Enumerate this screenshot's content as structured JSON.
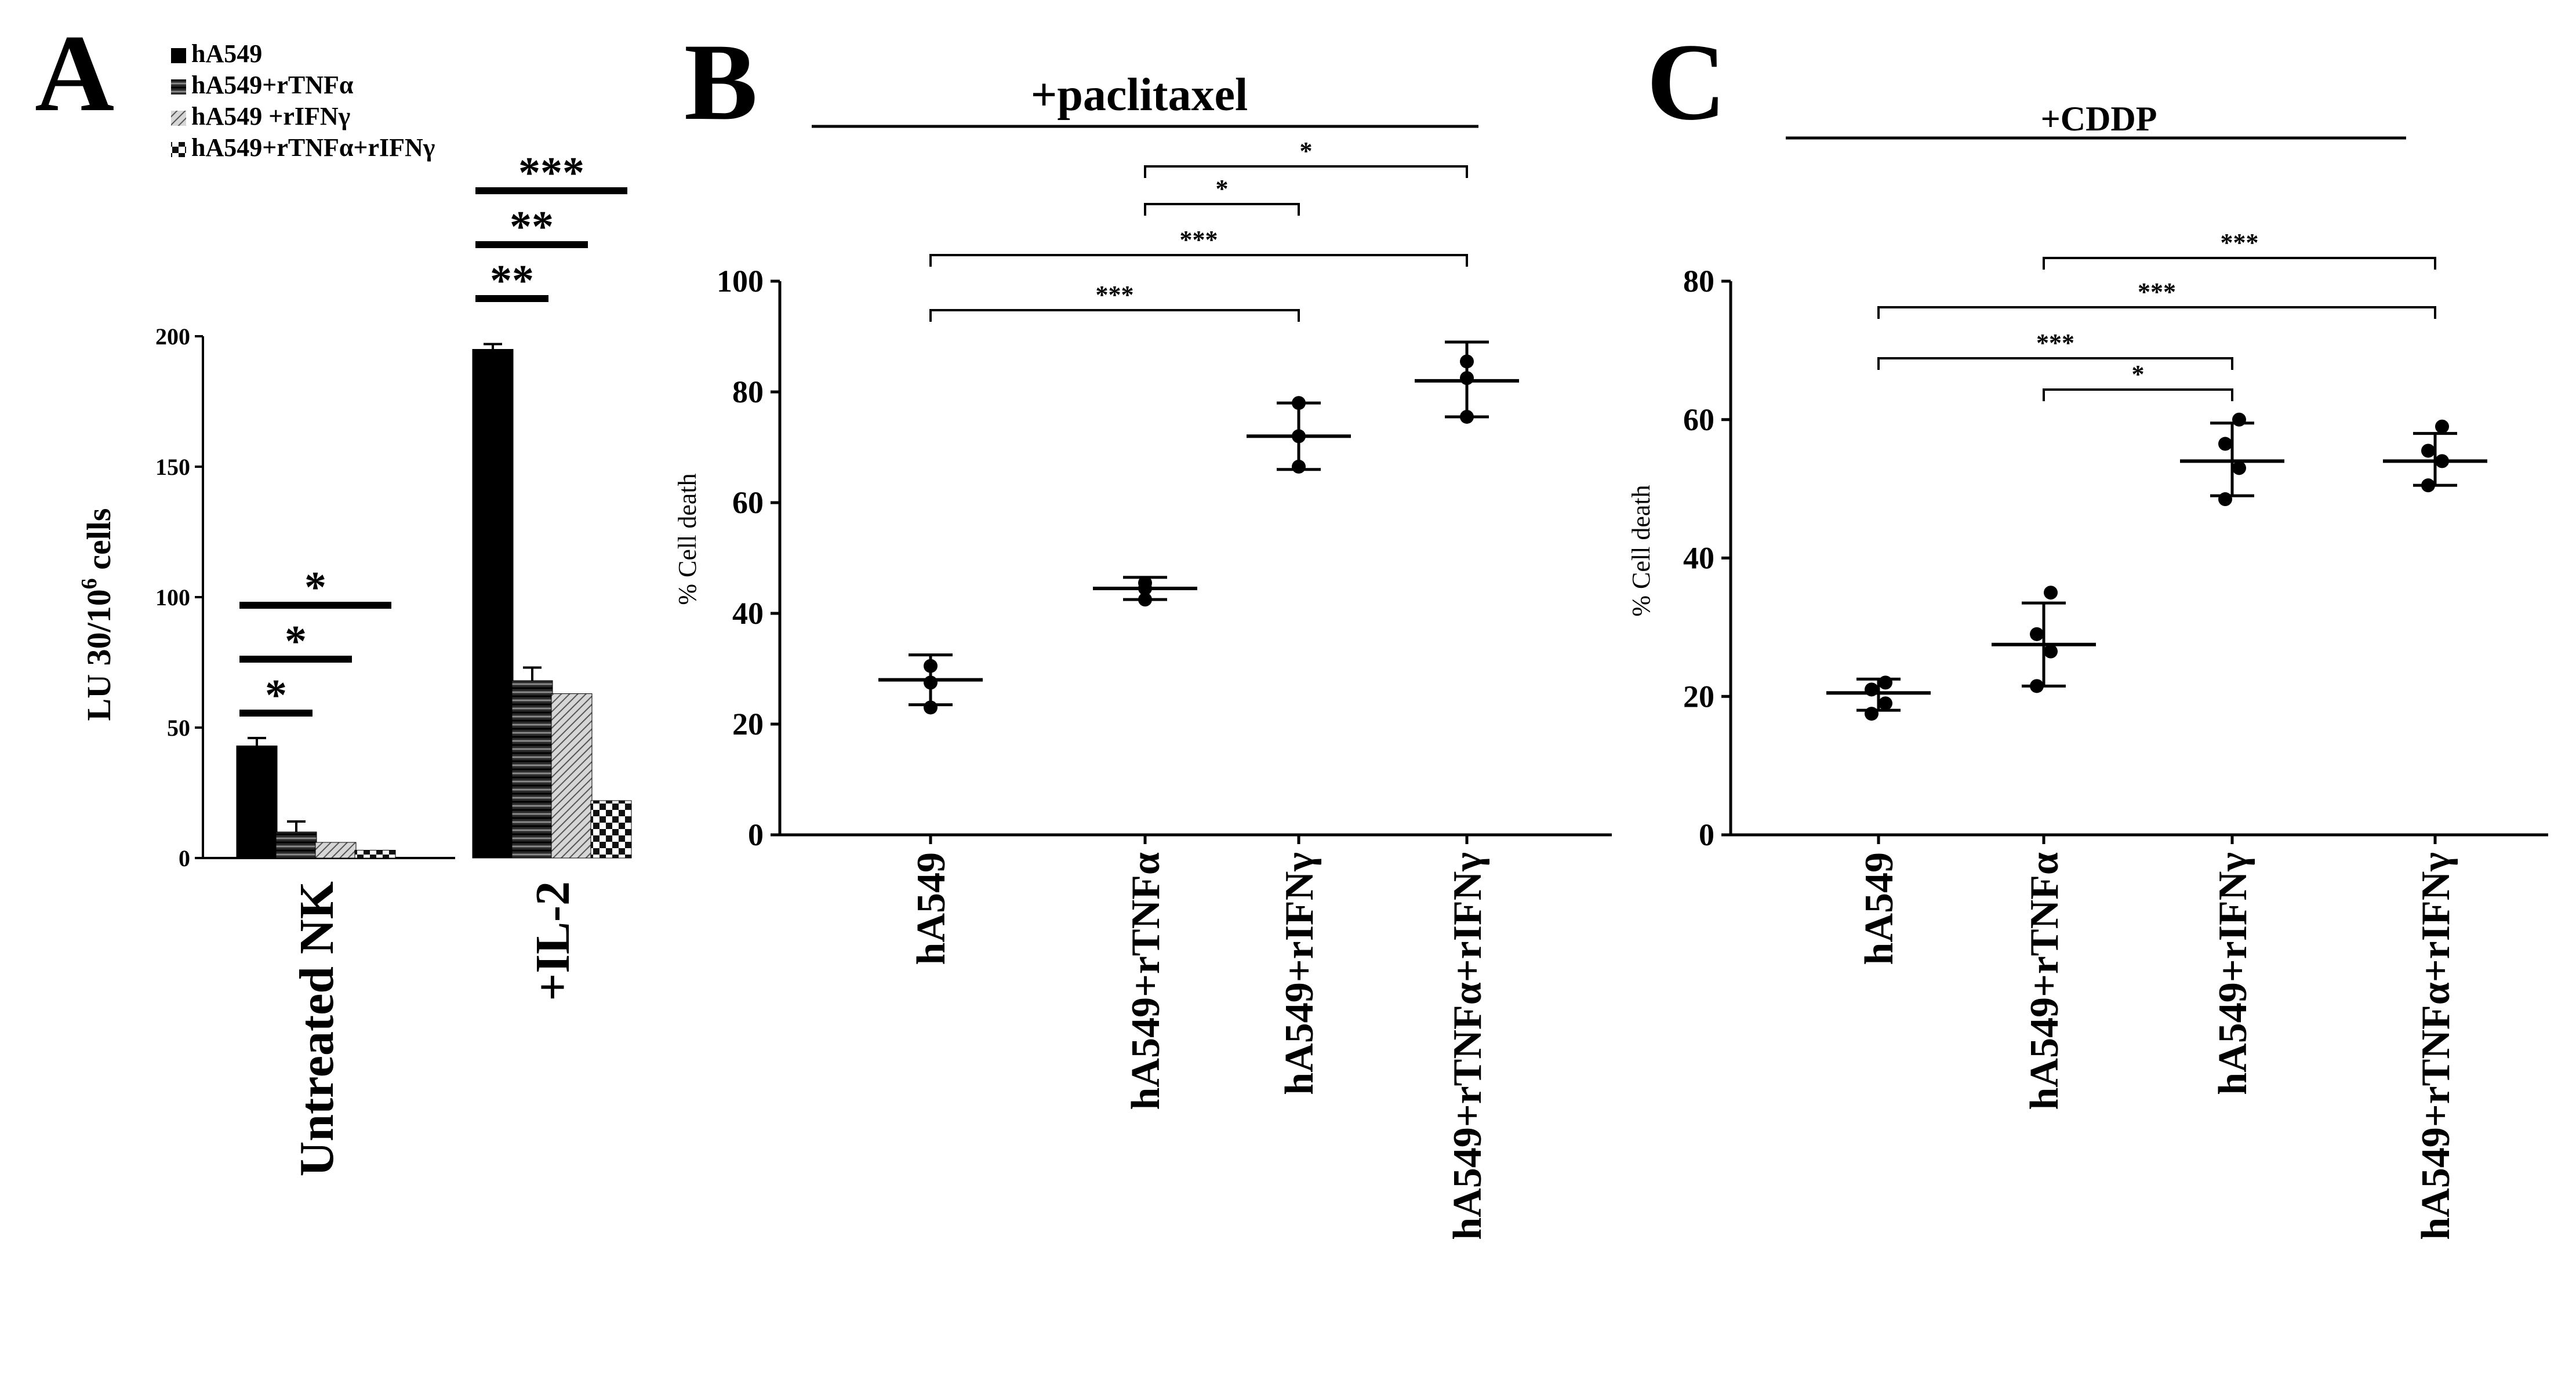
{
  "chart_data": [
    {
      "panel": "A",
      "type": "bar",
      "categories": [
        "Untreated NK",
        "+IL-2"
      ],
      "series": [
        {
          "name": "hA549",
          "values": [
            43,
            195
          ],
          "errors": [
            3,
            2
          ]
        },
        {
          "name": "hA549+rTNFα",
          "values": [
            10,
            68
          ],
          "errors": [
            4,
            5
          ]
        },
        {
          "name": "hA549 +rIFNγ",
          "values": [
            6,
            63
          ],
          "errors": [
            0,
            0
          ]
        },
        {
          "name": "hA549+rTNFα+rIFNγ",
          "values": [
            3,
            22
          ],
          "errors": [
            0,
            0
          ]
        }
      ],
      "ylabel_main": "LU 30/10",
      "ylabel_sup": "6",
      "ylabel_tail": " cells",
      "ylim": [
        0,
        200
      ],
      "yticks": [
        0,
        50,
        100,
        150,
        200
      ],
      "legend": "top-left",
      "significance": [
        {
          "group": 0,
          "from": 0,
          "to": 1,
          "label": "*"
        },
        {
          "group": 0,
          "from": 0,
          "to": 2,
          "label": "*"
        },
        {
          "group": 0,
          "from": 0,
          "to": 3,
          "label": "*"
        },
        {
          "group": 1,
          "from": 0,
          "to": 1,
          "label": "**"
        },
        {
          "group": 1,
          "from": 0,
          "to": 2,
          "label": "**"
        },
        {
          "group": 1,
          "from": 0,
          "to": 3,
          "label": "***"
        }
      ]
    },
    {
      "panel": "B",
      "type": "scatter",
      "title": "+paclitaxel",
      "ylabel": "% Cell death",
      "ylim": [
        0,
        100
      ],
      "yticks": [
        0,
        20,
        40,
        60,
        80,
        100
      ],
      "categories": [
        "hA549",
        "hA549+rTNFα",
        "hA549+rIFNγ",
        "hA549+rTNFα+rIFNγ"
      ],
      "groups": [
        {
          "mean": 28,
          "sd_low": 23.5,
          "sd_high": 32.5,
          "points": [
            23,
            27.5,
            30.5
          ]
        },
        {
          "mean": 44.5,
          "sd_low": 42.5,
          "sd_high": 46.5,
          "points": [
            42.5,
            44.5,
            45.5
          ]
        },
        {
          "mean": 72,
          "sd_low": 66,
          "sd_high": 78,
          "points": [
            66.5,
            72,
            78
          ]
        },
        {
          "mean": 82,
          "sd_low": 75.5,
          "sd_high": 89,
          "points": [
            75.5,
            82.5,
            85.5
          ]
        }
      ],
      "significance": [
        {
          "from": 1,
          "to": 3,
          "label": "*"
        },
        {
          "from": 1,
          "to": 2,
          "label": "*"
        },
        {
          "from": 0,
          "to": 3,
          "label": "***"
        },
        {
          "from": 0,
          "to": 2,
          "label": "***"
        }
      ]
    },
    {
      "panel": "C",
      "type": "scatter",
      "title": "+CDDP",
      "ylabel": "% Cell death",
      "ylim": [
        0,
        80
      ],
      "yticks": [
        0,
        20,
        40,
        60,
        80
      ],
      "categories": [
        "hA549",
        "hA549+rTNFα",
        "hA549+rIFNγ",
        "hA549+rTNFα+rIFNγ"
      ],
      "groups": [
        {
          "mean": 20.5,
          "sd_low": 18,
          "sd_high": 22.5,
          "points": [
            17.5,
            19,
            21,
            22
          ]
        },
        {
          "mean": 27.5,
          "sd_low": 21.5,
          "sd_high": 33.5,
          "points": [
            21.5,
            26.5,
            29,
            35
          ]
        },
        {
          "mean": 54,
          "sd_low": 49,
          "sd_high": 59.5,
          "points": [
            48.5,
            53,
            56.5,
            60
          ]
        },
        {
          "mean": 54,
          "sd_low": 50.5,
          "sd_high": 58,
          "points": [
            50.5,
            54,
            55.5,
            59
          ]
        }
      ],
      "significance": [
        {
          "from": 1,
          "to": 3,
          "label": "***"
        },
        {
          "from": 0,
          "to": 3,
          "label": "***"
        },
        {
          "from": 0,
          "to": 2,
          "label": "***"
        },
        {
          "from": 1,
          "to": 2,
          "label": "*"
        }
      ]
    }
  ],
  "panel_labels": [
    "A",
    "B",
    "C"
  ]
}
